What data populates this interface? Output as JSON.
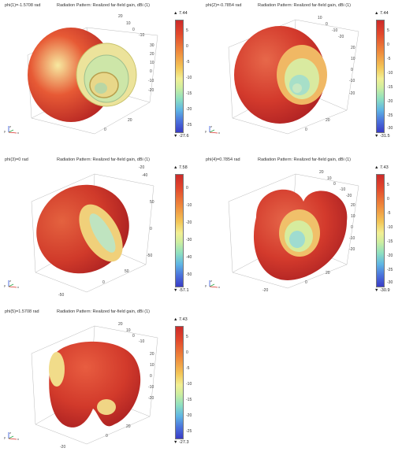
{
  "panels": [
    {
      "param": "phi(1)=-1.5708 rad",
      "title": "Radiation Pattern: Realized far-field gain, dBi (1)",
      "max": "▲ 7.44",
      "min": "▼ -27.6",
      "ticks": [
        "5",
        "0",
        "-5",
        "-10",
        "-15",
        "-20",
        "-25"
      ],
      "axis_ticks": [
        "20",
        "10",
        "0",
        "-10",
        "30",
        "20",
        "10",
        "0",
        "-10",
        "-20",
        "0",
        "20",
        "20"
      ]
    },
    {
      "param": "phi(2)=-0.7854 rad",
      "title": "Radiation Pattern: Realized far-field gain, dBi (1)",
      "max": "▲ 7.44",
      "min": "▼ -31.5",
      "ticks": [
        "5",
        "0",
        "-5",
        "-10",
        "-15",
        "-20",
        "-25",
        "-30"
      ],
      "axis_ticks": [
        "10",
        "0",
        "-10",
        "-20",
        "20",
        "10",
        "0",
        "-10",
        "-20",
        "20",
        "0"
      ]
    },
    {
      "param": "phi(3)=0 rad",
      "title": "Radiation Pattern: Realized far-field gain, dBi (1)",
      "max": "▲ 7.58",
      "min": "▼ -57.1",
      "ticks": [
        "0",
        "-10",
        "-20",
        "-30",
        "-40",
        "-50"
      ],
      "axis_ticks": [
        "-20",
        "-40",
        "50",
        "0",
        "-50",
        "0",
        "50",
        "-50"
      ]
    },
    {
      "param": "phi(4)=0.7854 rad",
      "title": "Radiation Pattern: Realized far-field gain, dBi (1)",
      "max": "▲ 7.43",
      "min": "▼ -30.9",
      "ticks": [
        "5",
        "0",
        "-5",
        "-10",
        "-15",
        "-20",
        "-25",
        "-30"
      ],
      "axis_ticks": [
        "20",
        "10",
        "0",
        "-10",
        "-20",
        "20",
        "10",
        "0",
        "-10",
        "-20",
        "0",
        "20",
        "-20"
      ]
    },
    {
      "param": "phi(5)=1.5708 rad",
      "title": "Radiation Pattern: Realized far-field gain, dBi (1)",
      "max": "▲ 7.43",
      "min": "▼ -27.3",
      "ticks": [
        "5",
        "0",
        "-5",
        "-10",
        "-15",
        "-20",
        "-25"
      ],
      "axis_ticks": [
        "20",
        "10",
        "0",
        "-10",
        "20",
        "10",
        "0",
        "-10",
        "-20",
        "20",
        "0",
        "-20"
      ]
    }
  ],
  "triad": {
    "z": "z",
    "y": "y",
    "x": "x"
  },
  "colors": {
    "hot": "#cc2a2a",
    "warm": "#f3c657",
    "cool": "#8fe0c0",
    "cold": "#3a3cc6"
  }
}
